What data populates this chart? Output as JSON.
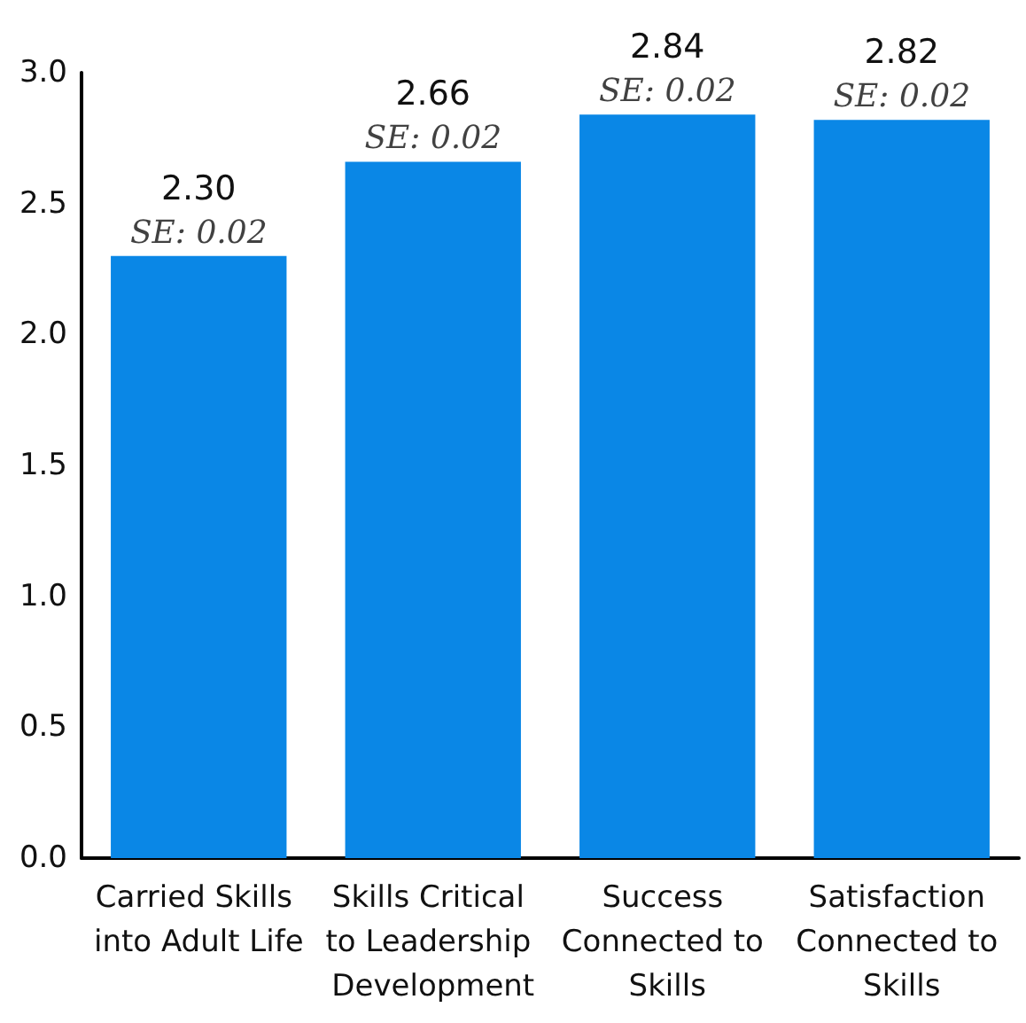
{
  "chart_data": {
    "type": "bar",
    "categories": [
      "Carried Skills into Adult Life",
      "Skills Critical to Leadership Development",
      "Success Connected to Skills",
      "Satisfaction Connected to Skills"
    ],
    "values": [
      2.3,
      2.66,
      2.84,
      2.82
    ],
    "value_labels": [
      "2.30",
      "2.66",
      "2.84",
      "2.82"
    ],
    "color": "#0a87e6",
    "annotations": [
      {
        "text": "SE: 0.02",
        "x": "Carried Skills into Adult Life",
        "y": 2.3
      },
      {
        "text": "SE: 0.02",
        "x": "Skills Critical to Leadership Development",
        "y": 2.66
      },
      {
        "text": "SE: 0.02",
        "x": "Success Connected to Skills",
        "y": 2.84
      },
      {
        "text": "SE: 0.02",
        "x": "Satisfaction Connected to Skills",
        "y": 2.82
      }
    ],
    "ylim": [
      0,
      3
    ],
    "yticks": [
      {
        "value": 0,
        "label": "0.0"
      },
      {
        "value": 0.5,
        "label": "0.5"
      },
      {
        "value": 1,
        "label": "1.0"
      },
      {
        "value": 1.5,
        "label": "1.5"
      },
      {
        "value": 2,
        "label": "2.0"
      },
      {
        "value": 2.5,
        "label": "2.5"
      },
      {
        "value": 3,
        "label": "3.0"
      }
    ],
    "grid": false
  }
}
